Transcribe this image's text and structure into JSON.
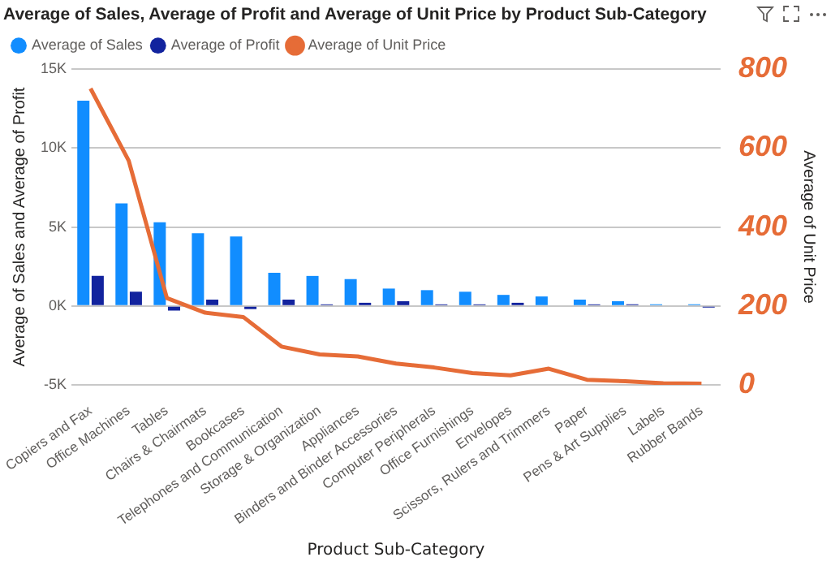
{
  "chart_data": {
    "type": "bar",
    "title": "Average of Sales, Average of Profit and Average of Unit Price by Product Sub-Category",
    "xlabel": "Product Sub-Category",
    "ylabel": "Average of Sales and Average of Profit",
    "y2label": "Average of Unit Price",
    "categories": [
      "Copiers and Fax",
      "Office Machines",
      "Tables",
      "Chairs & Chairmats",
      "Bookcases",
      "Telephones and Communication",
      "Storage & Organization",
      "Appliances",
      "Binders and Binder Accessories",
      "Computer Peripherals",
      "Office Furnishings",
      "Envelopes",
      "Scissors, Rulers and Trimmers",
      "Paper",
      "Pens & Art Supplies",
      "Labels",
      "Rubber Bands"
    ],
    "series": [
      {
        "name": "Average of Sales",
        "color": "#118dff",
        "values": [
          13000,
          6500,
          5300,
          4600,
          4400,
          2100,
          1900,
          1700,
          1100,
          1000,
          900,
          700,
          600,
          400,
          300,
          100,
          100
        ]
      },
      {
        "name": "Average of Profit",
        "color": "#12239e",
        "values": [
          1900,
          900,
          -300,
          400,
          -200,
          400,
          100,
          200,
          300,
          100,
          100,
          200,
          null,
          100,
          100,
          null,
          -100
        ]
      },
      {
        "name": "Average of Unit Price",
        "color": "#e66c37",
        "type": "line",
        "axis": "y2",
        "marker": "none",
        "values": [
          751,
          568,
          220,
          183,
          172,
          97,
          77,
          72,
          54,
          44,
          30,
          24,
          41,
          13,
          9,
          4,
          3
        ]
      }
    ],
    "ylim": [
      -5000,
      15000
    ],
    "yticks": [
      {
        "value": -5000,
        "label": "-5K"
      },
      {
        "value": 0,
        "label": "0K"
      },
      {
        "value": 5000,
        "label": "5K"
      },
      {
        "value": 10000,
        "label": "10K"
      },
      {
        "value": 15000,
        "label": "15K"
      }
    ],
    "y2lim": [
      0,
      800
    ],
    "y2ticks": [
      0,
      200,
      400,
      600,
      800
    ],
    "grid": "y",
    "legend": "top left"
  }
}
